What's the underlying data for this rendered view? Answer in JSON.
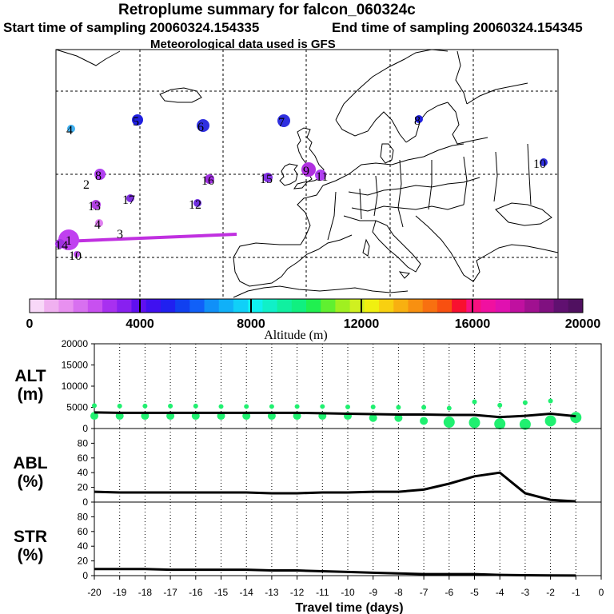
{
  "header": {
    "title": "Retroplume summary for falcon_060324c",
    "start": "Start time of sampling 20060324.154335",
    "end": "End time of sampling 20060324.154345",
    "met": "Meteorological data used is GFS"
  },
  "colorbar": {
    "ticks": [
      "0",
      "4000",
      "8000",
      "12000",
      "16000",
      "20000"
    ],
    "label": "Altitude (m)",
    "colors": [
      "#f8d8f8",
      "#f0b0f0",
      "#e890f0",
      "#d870f0",
      "#c850f0",
      "#a830f0",
      "#8820f0",
      "#6010f0",
      "#4010f0",
      "#2020f0",
      "#1040f0",
      "#1060f8",
      "#1090f8",
      "#10b0f8",
      "#10d0f8",
      "#10f0f0",
      "#10f0c8",
      "#10f0a0",
      "#10f080",
      "#20f050",
      "#60f030",
      "#a0f020",
      "#d0f020",
      "#f0f010",
      "#f8d010",
      "#f8b010",
      "#f89010",
      "#f87010",
      "#f85010",
      "#f81030",
      "#f81080",
      "#f010a0",
      "#e010b0",
      "#c010a0",
      "#a01090",
      "#801080",
      "#601070",
      "#501060"
    ]
  },
  "map": {
    "trajectory_color": "#c030e0",
    "markers": [
      {
        "label": "1",
        "color": "#c040f0"
      },
      {
        "label": "2",
        "color": "#4030e0"
      },
      {
        "label": "3",
        "color": "#c050f0"
      },
      {
        "label": "4",
        "color": "#40b0f0"
      },
      {
        "label": "4",
        "color": "#e080f0"
      },
      {
        "label": "5",
        "color": "#2020e0"
      },
      {
        "label": "6",
        "color": "#3030e0"
      },
      {
        "label": "7",
        "color": "#3030e0"
      },
      {
        "label": "8",
        "color": "#b040f0"
      },
      {
        "label": "8",
        "color": "#2020e0"
      },
      {
        "label": "9",
        "color": "#b030e0"
      },
      {
        "label": "10",
        "color": "#3030e0"
      },
      {
        "label": "10",
        "color": "#c050f0"
      },
      {
        "label": "11",
        "color": "#b040f0"
      },
      {
        "label": "12",
        "color": "#7030e0"
      },
      {
        "label": "13",
        "color": "#b040e0"
      },
      {
        "label": "14",
        "color": "#a030e0"
      },
      {
        "label": "15",
        "color": "#8030e0"
      },
      {
        "label": "16",
        "color": "#a030e0"
      },
      {
        "label": "17",
        "color": "#8030e0"
      },
      {
        "label": "2",
        "color": "none"
      }
    ]
  },
  "chart_data": [
    {
      "type": "line",
      "panel": "ALT",
      "ylabel": "ALT",
      "yunit": "(m)",
      "ylim": [
        0,
        20000
      ],
      "yticks": [
        0,
        5000,
        10000,
        15000,
        20000
      ],
      "x": [
        -20,
        -19,
        -18,
        -17,
        -16,
        -15,
        -14,
        -13,
        -12,
        -11,
        -10,
        -9,
        -8,
        -7,
        -6,
        -5,
        -4,
        -3,
        -2,
        -1
      ],
      "values": [
        3800,
        3700,
        3700,
        3700,
        3700,
        3700,
        3700,
        3700,
        3700,
        3600,
        3500,
        3400,
        3300,
        3300,
        3200,
        3200,
        2700,
        3000,
        3500,
        2900
      ],
      "scatter_color": "#20f070",
      "scatter_lows": [
        3000,
        3000,
        3000,
        3000,
        3000,
        3000,
        3000,
        3000,
        3000,
        3000,
        3000,
        2500,
        2500,
        1800,
        1500,
        1400,
        1100,
        1000,
        1800,
        2600
      ],
      "scatter_highs": [
        5400,
        5300,
        5300,
        5300,
        5300,
        5200,
        5200,
        5200,
        5200,
        5200,
        5100,
        5100,
        5000,
        5000,
        4800,
        6300,
        5500,
        6100,
        6500,
        3000
      ]
    },
    {
      "type": "line",
      "panel": "ABL",
      "ylabel": "ABL",
      "yunit": "(%)",
      "ylim": [
        0,
        100
      ],
      "yticks": [
        0,
        20,
        40,
        60,
        80
      ],
      "x": [
        -20,
        -19,
        -18,
        -17,
        -16,
        -15,
        -14,
        -13,
        -12,
        -11,
        -10,
        -9,
        -8,
        -7,
        -6,
        -5,
        -4,
        -3,
        -2,
        -1
      ],
      "values": [
        14,
        13,
        13,
        13,
        13,
        13,
        13,
        12,
        12,
        13,
        13,
        14,
        14,
        17,
        25,
        35,
        40,
        12,
        3,
        1
      ]
    },
    {
      "type": "line",
      "panel": "STR",
      "ylabel": "STR",
      "yunit": "(%)",
      "ylim": [
        0,
        100
      ],
      "yticks": [
        0,
        20,
        40,
        60,
        80
      ],
      "x": [
        -20,
        -19,
        -18,
        -17,
        -16,
        -15,
        -14,
        -13,
        -12,
        -11,
        -10,
        -9,
        -8,
        -7,
        -6,
        -5,
        -4,
        -3,
        -2,
        -1
      ],
      "values": [
        9,
        9,
        9,
        8,
        8,
        8,
        8,
        7,
        7,
        6,
        5,
        4,
        3,
        2,
        2,
        2,
        1,
        0.5,
        0.3,
        0.2
      ]
    }
  ],
  "xaxis": {
    "label": "Travel time (days)",
    "ticks": [
      "-20",
      "-19",
      "-18",
      "-17",
      "-16",
      "-15",
      "-14",
      "-13",
      "-12",
      "-11",
      "-10",
      "-9",
      "-8",
      "-7",
      "-6",
      "-5",
      "-4",
      "-3",
      "-2",
      "-1",
      "0"
    ]
  }
}
